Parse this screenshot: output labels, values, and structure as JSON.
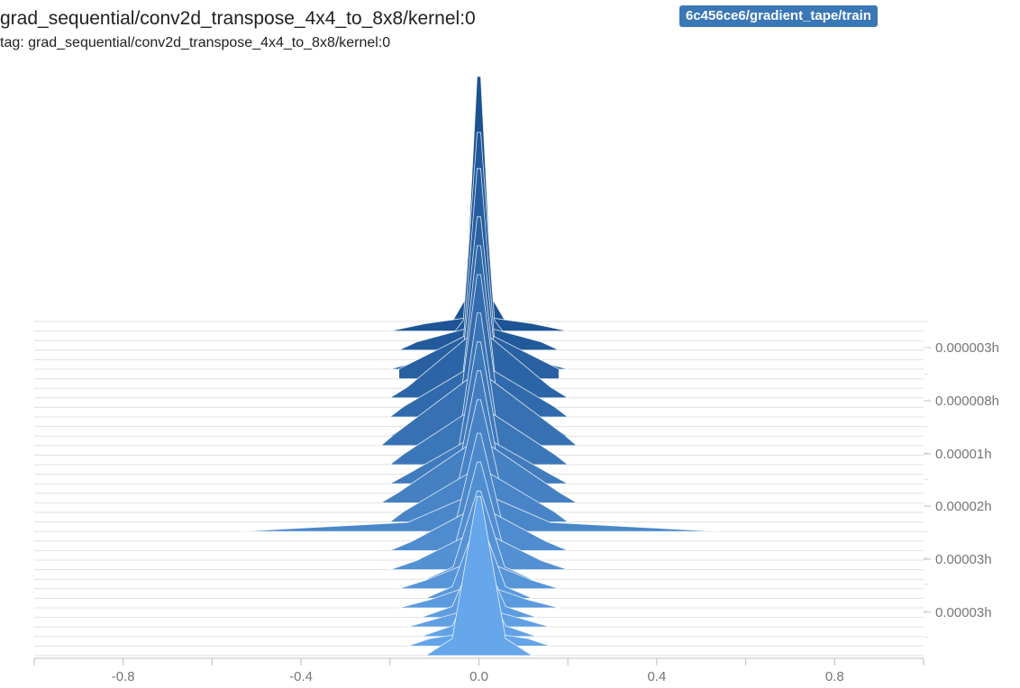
{
  "header": {
    "title": "grad_sequential/conv2d_transpose_4x4_to_8x8/kernel:0",
    "tag_label": "tag: grad_sequential/conv2d_transpose_4x4_to_8x8/kernel:0"
  },
  "run": {
    "name": "6c456ce6/gradient_tape/train",
    "color": "#3a77b6"
  },
  "chart_data": {
    "type": "histogram",
    "mode": "offset",
    "xlim": [
      -1.0,
      1.0
    ],
    "x_ticks": [
      -0.8,
      -0.4,
      0.0,
      0.4,
      0.8
    ],
    "x_tick_labels": [
      "-0.8",
      "-0.4",
      "0.0",
      "0.4",
      "0.8"
    ],
    "y_ticks": [
      "0.000003h",
      "0.000008h",
      "0.00001h",
      "0.00002h",
      "0.00003h",
      "0.00003h"
    ],
    "colors": {
      "oldest": "#1b5293",
      "newest": "#66a6ea",
      "stroke": "#ffffff",
      "baseline": "#e0e0e0"
    },
    "series": [
      {
        "step": 0,
        "peak": 1.0,
        "width": 0.03,
        "spread": 0.06
      },
      {
        "step": 1,
        "peak": 0.06,
        "width": 0.12,
        "spread": 0.2
      },
      {
        "step": 2,
        "peak": 0.85,
        "width": 0.035,
        "spread": 0.07
      },
      {
        "step": 3,
        "peak": 0.1,
        "width": 0.14,
        "spread": 0.18
      },
      {
        "step": 4,
        "peak": 0.78,
        "width": 0.035,
        "spread": 0.07
      },
      {
        "step": 5,
        "peak": 0.12,
        "width": 0.13,
        "spread": 0.2
      },
      {
        "step": 6,
        "peak": 0.2,
        "width": 0.18,
        "spread": 0.18
      },
      {
        "step": 7,
        "peak": 0.7,
        "width": 0.04,
        "spread": 0.08
      },
      {
        "step": 8,
        "peak": 0.28,
        "width": 0.16,
        "spread": 0.2
      },
      {
        "step": 9,
        "peak": 0.66,
        "width": 0.04,
        "spread": 0.09
      },
      {
        "step": 10,
        "peak": 0.22,
        "width": 0.17,
        "spread": 0.2
      },
      {
        "step": 11,
        "peak": 0.62,
        "width": 0.045,
        "spread": 0.09
      },
      {
        "step": 12,
        "peak": 0.26,
        "width": 0.16,
        "spread": 0.2
      },
      {
        "step": 13,
        "peak": 0.3,
        "width": 0.19,
        "spread": 0.22
      },
      {
        "step": 14,
        "peak": 0.58,
        "width": 0.045,
        "spread": 0.1
      },
      {
        "step": 15,
        "peak": 0.24,
        "width": 0.17,
        "spread": 0.2
      },
      {
        "step": 16,
        "peak": 0.54,
        "width": 0.05,
        "spread": 0.1
      },
      {
        "step": 17,
        "peak": 0.2,
        "width": 0.16,
        "spread": 0.2
      },
      {
        "step": 18,
        "peak": 0.5,
        "width": 0.05,
        "spread": 0.11
      },
      {
        "step": 19,
        "peak": 0.26,
        "width": 0.18,
        "spread": 0.22
      },
      {
        "step": 20,
        "peak": 0.46,
        "width": 0.055,
        "spread": 0.11
      },
      {
        "step": 21,
        "peak": 0.22,
        "width": 0.17,
        "spread": 0.2
      },
      {
        "step": 22,
        "peak": 0.16,
        "width": 0.16,
        "spread": 0.54
      },
      {
        "step": 23,
        "peak": 0.44,
        "width": 0.055,
        "spread": 0.12
      },
      {
        "step": 24,
        "peak": 0.18,
        "width": 0.15,
        "spread": 0.2
      },
      {
        "step": 25,
        "peak": 0.4,
        "width": 0.055,
        "spread": 0.12
      },
      {
        "step": 26,
        "peak": 0.16,
        "width": 0.14,
        "spread": 0.2
      },
      {
        "step": 27,
        "peak": 0.36,
        "width": 0.058,
        "spread": 0.12
      },
      {
        "step": 28,
        "peak": 0.12,
        "width": 0.12,
        "spread": 0.18
      },
      {
        "step": 29,
        "peak": 0.32,
        "width": 0.06,
        "spread": 0.12
      },
      {
        "step": 30,
        "peak": 0.1,
        "width": 0.11,
        "spread": 0.18
      },
      {
        "step": 31,
        "peak": 0.28,
        "width": 0.06,
        "spread": 0.13
      },
      {
        "step": 32,
        "peak": 0.08,
        "width": 0.1,
        "spread": 0.16
      },
      {
        "step": 33,
        "peak": 0.26,
        "width": 0.06,
        "spread": 0.13
      },
      {
        "step": 34,
        "peak": 0.06,
        "width": 0.11,
        "spread": 0.16
      },
      {
        "step": 35,
        "peak": 0.65,
        "width": 0.06,
        "spread": 0.12
      }
    ]
  }
}
